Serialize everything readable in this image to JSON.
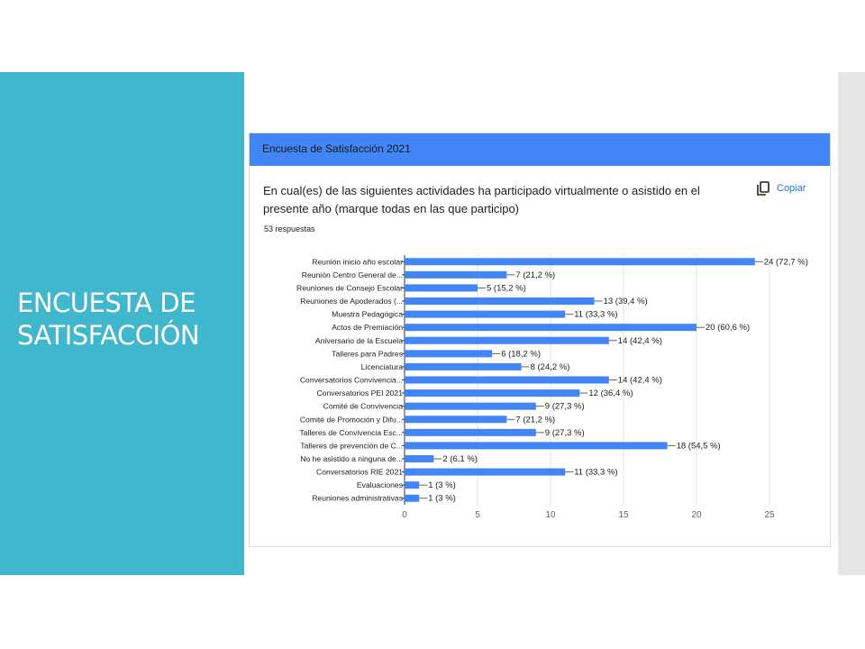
{
  "slide": {
    "title_line1": "ENCUESTA DE",
    "title_line2": "SATISFACCIÓN"
  },
  "form": {
    "header": "Encuesta de Satisfacción 2021",
    "question": "En cual(es) de las siguientes actividades ha participado virtualmente o asistido en el presente año (marque todas en las que participo)",
    "responses": "53 respuestas",
    "copy_label": "Copiar",
    "copy_icon": "copy-icon"
  },
  "colors": {
    "accent": "#4285f4",
    "sidebar": "#41b7cd",
    "copy_link": "#1a73e8"
  },
  "chart_data": {
    "type": "bar",
    "orientation": "horizontal",
    "categories": [
      "Reunión inicio año escolar",
      "Reunión Centro General de...",
      "Reuniones de Consejo Escolar",
      "Reuniones de Apoderados (...",
      "Muestra Pedagógica",
      "Actos de Premiación",
      "Aniversario de la Escuela",
      "Talleres para Padres",
      "Licenciatura",
      "Conversatorios Convivencia...",
      "Conversatorios PEI 2021",
      "Comité de Convivencia",
      "Comité de Promoción y Difu...",
      "Talleres de Convivencia Esc...",
      "Talleres de prevención de C...",
      "No he asistido a ninguna de...",
      "Conversatorios RIE 2021",
      "Evaluaciones",
      "Reuniones administrativas"
    ],
    "values": [
      24,
      7,
      5,
      13,
      11,
      20,
      14,
      6,
      8,
      14,
      12,
      9,
      7,
      9,
      18,
      2,
      11,
      1,
      1
    ],
    "data_labels": [
      "24 (72,7 %)",
      "7 (21,2 %)",
      "5 (15,2 %)",
      "13 (39,4 %)",
      "11 (33,3 %)",
      "20 (60,6 %)",
      "14 (42,4 %)",
      "6 (18,2 %)",
      "8 (24,2 %)",
      "14 (42,4 %)",
      "12 (36,4 %)",
      "9 (27,3 %)",
      "7 (21,2 %)",
      "9 (27,3 %)",
      "18 (54,5 %)",
      "2 (6,1 %)",
      "11 (33,3 %)",
      "1 (3 %)",
      "1 (3 %)"
    ],
    "xlim": [
      0,
      25
    ],
    "xticks": [
      "0",
      "5",
      "10",
      "15",
      "20",
      "25"
    ],
    "grid": true,
    "bar_color": "#4285f4"
  }
}
